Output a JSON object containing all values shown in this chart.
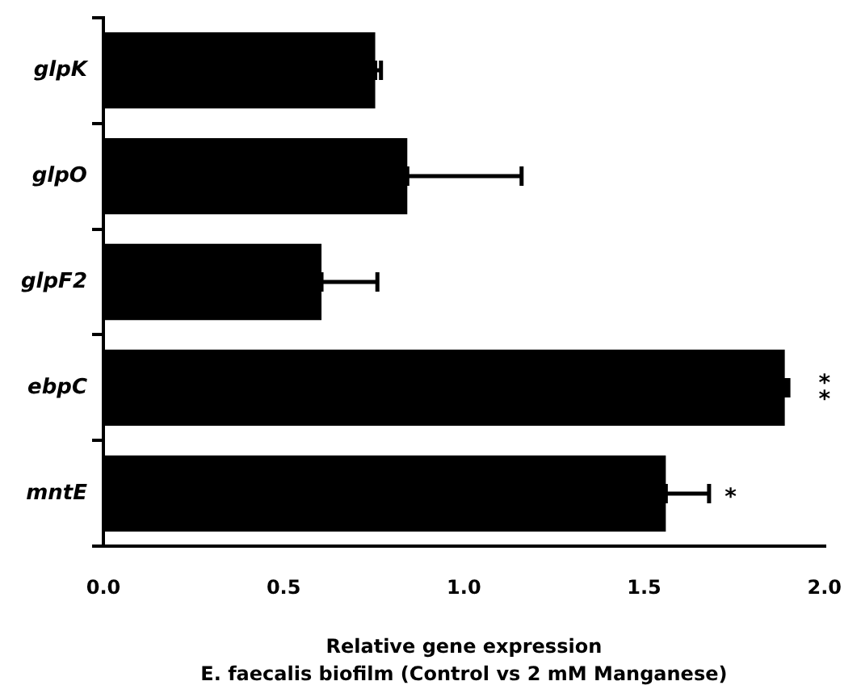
{
  "chart_data": {
    "type": "bar",
    "orientation": "horizontal",
    "categories": [
      "glpK",
      "glpO",
      "glpF2",
      "ebpC",
      "mntE"
    ],
    "values": [
      0.754,
      0.843,
      0.605,
      1.89,
      1.56
    ],
    "errors": [
      [
        0.754,
        0.77
      ],
      [
        0.843,
        1.16
      ],
      [
        0.605,
        0.76
      ],
      [
        1.89,
        1.9
      ],
      [
        1.56,
        1.68
      ]
    ],
    "color": "#000000",
    "xlim": [
      0,
      2
    ],
    "xticks": [
      {
        "value": 0,
        "label": "0.0"
      },
      {
        "value": 0.5,
        "label": "0.5"
      },
      {
        "value": 1,
        "label": "1.0"
      },
      {
        "value": 1.5,
        "label": "1.5"
      },
      {
        "value": 2,
        "label": "2.0"
      }
    ],
    "xlabel": "Relative gene expression",
    "grid": false,
    "legend": false,
    "annotations": [
      "**",
      "*",
      "E. faecalis biofilm (Control vs 2 mM Manganese)"
    ]
  }
}
